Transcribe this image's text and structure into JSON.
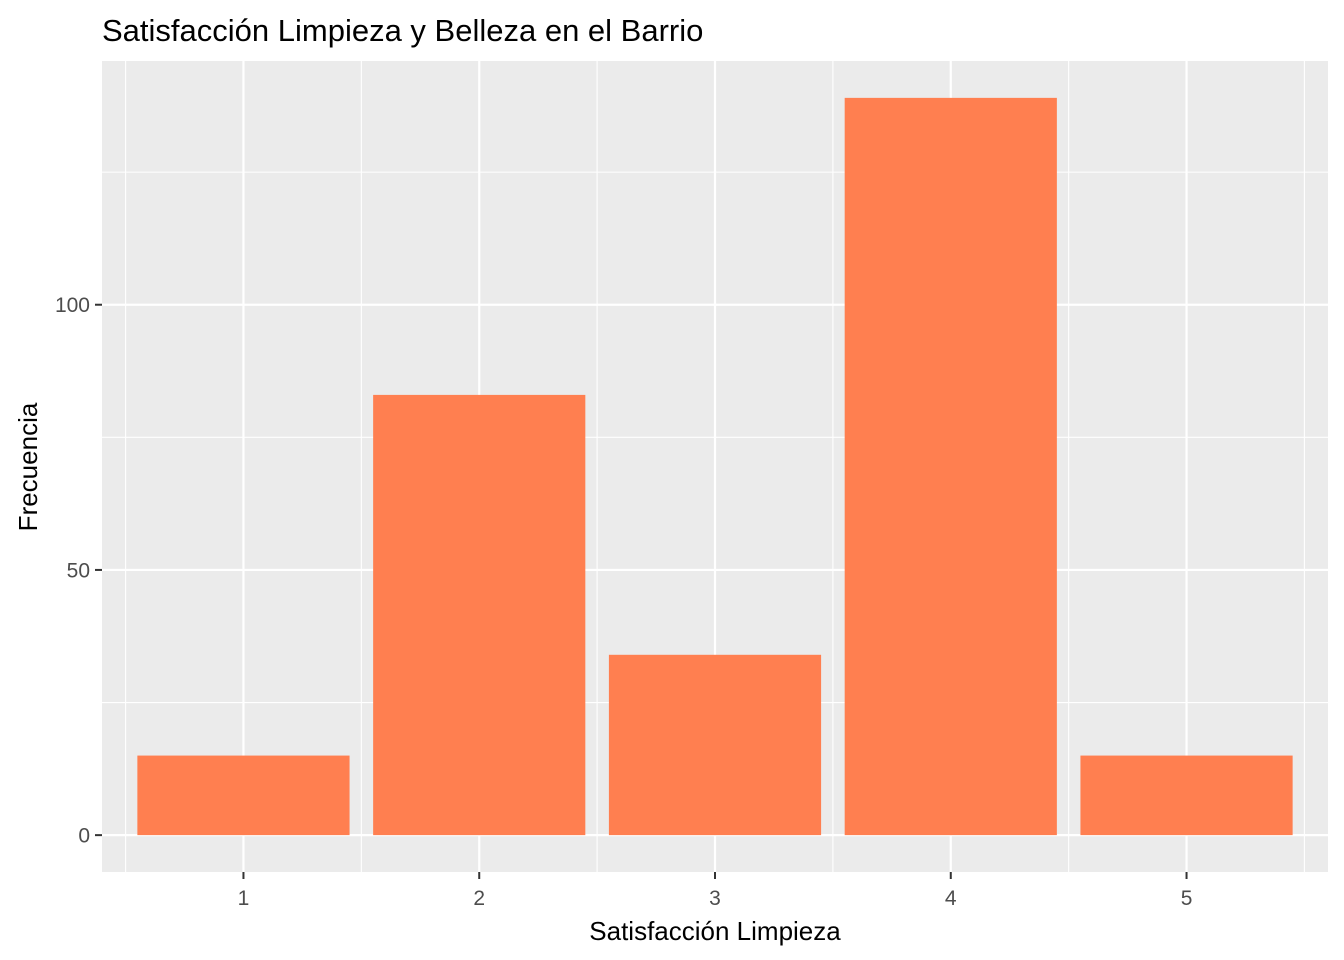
{
  "chart_data": {
    "type": "bar",
    "title": "Satisfacción Limpieza y Belleza en el Barrio",
    "xlabel": "Satisfacción Limpieza",
    "ylabel": "Frecuencia",
    "categories": [
      "1",
      "2",
      "3",
      "4",
      "5"
    ],
    "values": [
      15,
      83,
      34,
      139,
      15
    ],
    "ylim": [
      -6.95,
      145.95
    ],
    "yticks": [
      0,
      50,
      100
    ],
    "ytick_labels": [
      "0",
      "50",
      "100"
    ],
    "grid": true,
    "bar_color": "#FF7F50",
    "panel_background": "#EBEBEB",
    "grid_color": "#FFFFFF"
  }
}
